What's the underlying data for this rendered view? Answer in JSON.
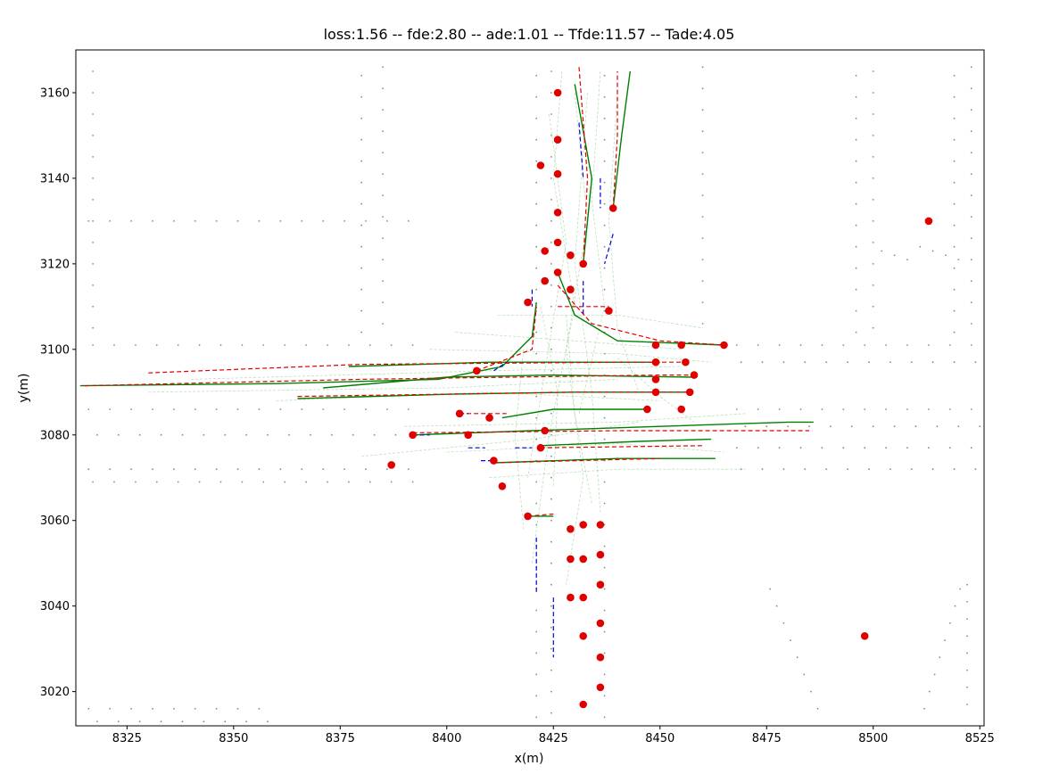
{
  "chart_data": {
    "type": "scatter",
    "title": "loss:1.56 -- fde:2.80 -- ade:1.01 -- Tfde:11.57 -- Tade:4.05",
    "xlabel": "x(m)",
    "ylabel": "y(m)",
    "xlim": [
      8313,
      8526
    ],
    "ylim": [
      3012,
      3170
    ],
    "xticks": [
      8325,
      8350,
      8375,
      8400,
      8425,
      8450,
      8475,
      8500,
      8525
    ],
    "yticks": [
      3020,
      3040,
      3060,
      3080,
      3100,
      3120,
      3140,
      3160
    ],
    "grid": false,
    "colors": {
      "agent": "#e00000",
      "ground_truth": "#008000",
      "prediction": "#e00000",
      "history": "#0000dd",
      "candidates": "#7fc97f",
      "map": "#888888"
    },
    "agents": [
      [
        8426,
        3160
      ],
      [
        8426,
        3149
      ],
      [
        8422,
        3143
      ],
      [
        8426,
        3141
      ],
      [
        8439,
        3133
      ],
      [
        8426,
        3132
      ],
      [
        8426,
        3125
      ],
      [
        8429,
        3122
      ],
      [
        8423,
        3123
      ],
      [
        8432,
        3120
      ],
      [
        8426,
        3118
      ],
      [
        8423,
        3116
      ],
      [
        8429,
        3114
      ],
      [
        8419,
        3111
      ],
      [
        8438,
        3109
      ],
      [
        8449,
        3101
      ],
      [
        8455,
        3101
      ],
      [
        8465,
        3101
      ],
      [
        8449,
        3097
      ],
      [
        8456,
        3097
      ],
      [
        8407,
        3095
      ],
      [
        8458,
        3094
      ],
      [
        8449,
        3093
      ],
      [
        8449,
        3090
      ],
      [
        8457,
        3090
      ],
      [
        8447,
        3086
      ],
      [
        8455,
        3086
      ],
      [
        8403,
        3085
      ],
      [
        8410,
        3084
      ],
      [
        8405,
        3080
      ],
      [
        8392,
        3080
      ],
      [
        8423,
        3081
      ],
      [
        8422,
        3077
      ],
      [
        8411,
        3074
      ],
      [
        8387,
        3073
      ],
      [
        8413,
        3068
      ],
      [
        8419,
        3061
      ],
      [
        8432,
        3059
      ],
      [
        8436,
        3059
      ],
      [
        8429,
        3058
      ],
      [
        8436,
        3052
      ],
      [
        8432,
        3051
      ],
      [
        8429,
        3051
      ],
      [
        8436,
        3045
      ],
      [
        8432,
        3042
      ],
      [
        8429,
        3042
      ],
      [
        8436,
        3036
      ],
      [
        8432,
        3033
      ],
      [
        8436,
        3028
      ],
      [
        8436,
        3021
      ],
      [
        8432,
        3017
      ],
      [
        8513,
        3130
      ],
      [
        8498,
        3033
      ]
    ],
    "ground_truth": [
      [
        [
          8314,
          3091.5
        ],
        [
          8360,
          3092
        ],
        [
          8398,
          3093
        ],
        [
          8413,
          3096
        ],
        [
          8420,
          3103
        ],
        [
          8421,
          3111
        ]
      ],
      [
        [
          8377,
          3096
        ],
        [
          8410,
          3097
        ],
        [
          8450,
          3097
        ]
      ],
      [
        [
          8371,
          3091
        ],
        [
          8400,
          3093.5
        ],
        [
          8425,
          3094
        ],
        [
          8458,
          3093.5
        ]
      ],
      [
        [
          8365,
          3088.5
        ],
        [
          8400,
          3089.5
        ],
        [
          8430,
          3090
        ],
        [
          8457,
          3090
        ]
      ],
      [
        [
          8392,
          3080
        ],
        [
          8420,
          3081
        ],
        [
          8450,
          3082
        ],
        [
          8480,
          3083
        ],
        [
          8486,
          3083
        ]
      ],
      [
        [
          8422,
          3077.5
        ],
        [
          8445,
          3078.5
        ],
        [
          8462,
          3079
        ]
      ],
      [
        [
          8411,
          3073.5
        ],
        [
          8440,
          3074.5
        ],
        [
          8463,
          3074.5
        ]
      ],
      [
        [
          8413,
          3084
        ],
        [
          8425,
          3086
        ],
        [
          8447,
          3086
        ]
      ],
      [
        [
          8426,
          3118
        ],
        [
          8430,
          3108
        ],
        [
          8440,
          3102
        ],
        [
          8465,
          3101
        ]
      ],
      [
        [
          8430,
          3162
        ],
        [
          8434,
          3140
        ],
        [
          8432,
          3120
        ]
      ],
      [
        [
          8439,
          3133
        ],
        [
          8441,
          3150
        ],
        [
          8443,
          3165
        ]
      ],
      [
        [
          8419,
          3061
        ],
        [
          8425,
          3061
        ]
      ]
    ],
    "predictions": [
      [
        [
          8330,
          3094.5
        ],
        [
          8380,
          3096.5
        ],
        [
          8440,
          3097
        ],
        [
          8456,
          3097
        ]
      ],
      [
        [
          8315,
          3091.5
        ],
        [
          8380,
          3093
        ],
        [
          8450,
          3094
        ],
        [
          8458,
          3094
        ]
      ],
      [
        [
          8365,
          3089
        ],
        [
          8430,
          3090
        ],
        [
          8457,
          3090
        ]
      ],
      [
        [
          8392,
          3080.5
        ],
        [
          8440,
          3081
        ],
        [
          8485,
          3081
        ]
      ],
      [
        [
          8422,
          3077
        ],
        [
          8460,
          3077.5
        ]
      ],
      [
        [
          8411,
          3073.5
        ],
        [
          8450,
          3074.5
        ]
      ],
      [
        [
          8403,
          3085
        ],
        [
          8414,
          3085
        ]
      ],
      [
        [
          8426,
          3115
        ],
        [
          8434,
          3106
        ],
        [
          8450,
          3102
        ],
        [
          8465,
          3101
        ]
      ],
      [
        [
          8407,
          3095
        ],
        [
          8420,
          3100
        ],
        [
          8421,
          3110
        ]
      ],
      [
        [
          8431,
          3166
        ],
        [
          8433,
          3140
        ],
        [
          8432,
          3120
        ]
      ],
      [
        [
          8439,
          3133
        ],
        [
          8440,
          3150
        ],
        [
          8440,
          3165
        ]
      ],
      [
        [
          8426,
          3110
        ],
        [
          8438,
          3110
        ]
      ],
      [
        [
          8419,
          3061
        ],
        [
          8425,
          3061.5
        ]
      ]
    ],
    "history": [
      [
        [
          8431,
          3153
        ],
        [
          8432,
          3140
        ]
      ],
      [
        [
          8436,
          3140
        ],
        [
          8436,
          3133
        ]
      ],
      [
        [
          8439,
          3127
        ],
        [
          8437,
          3120
        ]
      ],
      [
        [
          8432,
          3116
        ],
        [
          8432,
          3108
        ]
      ],
      [
        [
          8420,
          3114
        ],
        [
          8420,
          3110
        ]
      ],
      [
        [
          8421,
          3056
        ],
        [
          8421,
          3043
        ]
      ],
      [
        [
          8425,
          3042
        ],
        [
          8425,
          3028
        ]
      ],
      [
        [
          8405,
          3077
        ],
        [
          8409,
          3077
        ]
      ],
      [
        [
          8408,
          3074
        ],
        [
          8411,
          3074
        ]
      ],
      [
        [
          8392,
          3080
        ],
        [
          8396,
          3080
        ]
      ],
      [
        [
          8416,
          3077
        ],
        [
          8420,
          3077
        ]
      ],
      [
        [
          8403,
          3085
        ],
        [
          8405,
          3085
        ]
      ],
      [
        [
          8411,
          3095
        ],
        [
          8414,
          3097
        ]
      ]
    ],
    "candidates": [
      [
        [
          8427,
          3165
        ],
        [
          8425,
          3140
        ],
        [
          8430,
          3110
        ],
        [
          8424,
          3080
        ],
        [
          8420,
          3050
        ]
      ],
      [
        [
          8430,
          3160
        ],
        [
          8433,
          3130
        ],
        [
          8428,
          3100
        ],
        [
          8432,
          3070
        ],
        [
          8428,
          3045
        ]
      ],
      [
        [
          8436,
          3165
        ],
        [
          8434,
          3135
        ],
        [
          8437,
          3110
        ],
        [
          8431,
          3085
        ]
      ],
      [
        [
          8440,
          3160
        ],
        [
          8438,
          3130
        ],
        [
          8440,
          3105
        ],
        [
          8445,
          3090
        ]
      ],
      [
        [
          8424,
          3155
        ],
        [
          8428,
          3125
        ],
        [
          8423,
          3095
        ],
        [
          8419,
          3070
        ]
      ],
      [
        [
          8433,
          3160
        ],
        [
          8430,
          3120
        ],
        [
          8434,
          3090
        ],
        [
          8436,
          3062
        ]
      ],
      [
        [
          8412,
          3108
        ],
        [
          8440,
          3108
        ],
        [
          8460,
          3105
        ]
      ],
      [
        [
          8396,
          3100
        ],
        [
          8440,
          3099
        ],
        [
          8462,
          3097
        ]
      ],
      [
        [
          8330,
          3090
        ],
        [
          8400,
          3091
        ],
        [
          8440,
          3093
        ]
      ],
      [
        [
          8340,
          3093
        ],
        [
          8410,
          3095
        ],
        [
          8455,
          3096
        ]
      ],
      [
        [
          8390,
          3082
        ],
        [
          8440,
          3083
        ],
        [
          8470,
          3085
        ]
      ],
      [
        [
          8400,
          3076
        ],
        [
          8440,
          3078
        ],
        [
          8465,
          3076
        ]
      ],
      [
        [
          8410,
          3070
        ],
        [
          8440,
          3072
        ],
        [
          8470,
          3072
        ]
      ],
      [
        [
          8380,
          3075
        ],
        [
          8420,
          3079
        ],
        [
          8445,
          3083
        ]
      ],
      [
        [
          8422,
          3110
        ],
        [
          8426,
          3090
        ],
        [
          8425,
          3068
        ]
      ],
      [
        [
          8428,
          3108
        ],
        [
          8430,
          3085
        ],
        [
          8434,
          3064
        ]
      ],
      [
        [
          8418,
          3100
        ],
        [
          8416,
          3080
        ],
        [
          8418,
          3058
        ]
      ],
      [
        [
          8440,
          3098
        ],
        [
          8450,
          3089
        ],
        [
          8458,
          3083
        ]
      ],
      [
        [
          8402,
          3104
        ],
        [
          8430,
          3102
        ],
        [
          8455,
          3100
        ]
      ],
      [
        [
          8360,
          3088
        ],
        [
          8410,
          3090
        ],
        [
          8450,
          3088
        ]
      ]
    ]
  }
}
